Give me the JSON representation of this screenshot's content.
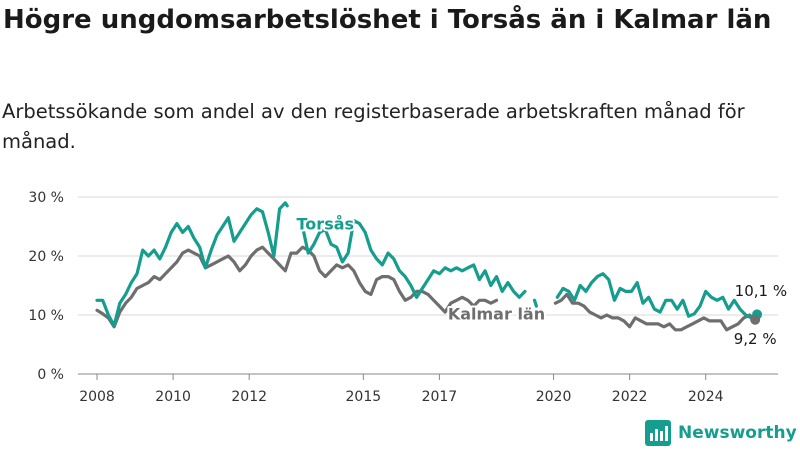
{
  "chart_data": {
    "type": "line",
    "title": "Högre ungdomsarbetslöshet i Torsås än i Kalmar län",
    "subtitle": "Arbetssökande som andel av den registerbaserade arbetskraften månad för månad.",
    "ylim": [
      0,
      30
    ],
    "y_ticks": [
      "0 %",
      "10 %",
      "20 %",
      "30 %"
    ],
    "y_tick_values": [
      0,
      10,
      20,
      30
    ],
    "x_ticks": [
      "2008",
      "2010",
      "2012",
      "2015",
      "2017",
      "2020",
      "2022",
      "2024"
    ],
    "x_tick_values": [
      2008,
      2010,
      2012,
      2015,
      2017,
      2020,
      2022,
      2024
    ],
    "xlim": [
      2007.5,
      2025.9
    ],
    "grid": true,
    "legend": "direct labels on lines",
    "series": [
      {
        "name": "Torsås",
        "color": "#159d8e",
        "points": [
          [
            2008.0,
            12.5
          ],
          [
            2008.15,
            12.5
          ],
          [
            2008.3,
            10.0
          ],
          [
            2008.45,
            8.2
          ],
          [
            2008.6,
            12.0
          ],
          [
            2008.75,
            13.5
          ],
          [
            2008.9,
            15.5
          ],
          [
            2009.05,
            17.0
          ],
          [
            2009.2,
            21.0
          ],
          [
            2009.35,
            20.0
          ],
          [
            2009.5,
            21.0
          ],
          [
            2009.65,
            19.5
          ],
          [
            2009.8,
            21.5
          ],
          [
            2009.95,
            24.0
          ],
          [
            2010.1,
            25.5
          ],
          [
            2010.25,
            24.0
          ],
          [
            2010.4,
            25.0
          ],
          [
            2010.55,
            23.0
          ],
          [
            2010.7,
            21.5
          ],
          [
            2010.85,
            18.0
          ],
          [
            2011.0,
            21.0
          ],
          [
            2011.15,
            23.5
          ],
          [
            2011.3,
            25.0
          ],
          [
            2011.45,
            26.5
          ],
          [
            2011.6,
            22.5
          ],
          [
            2011.75,
            24.0
          ],
          [
            2011.9,
            25.5
          ],
          [
            2012.05,
            27.0
          ],
          [
            2012.2,
            28.0
          ],
          [
            2012.35,
            27.5
          ],
          [
            2012.5,
            24.0
          ],
          [
            2012.65,
            20.0
          ],
          [
            2012.8,
            28.0
          ],
          [
            2012.95,
            29.0
          ],
          [
            2013.0,
            28.5
          ],
          null,
          [
            2013.4,
            25.0
          ],
          [
            2013.55,
            20.5
          ],
          [
            2013.7,
            22.0
          ],
          [
            2013.85,
            24.0
          ],
          [
            2014.0,
            24.5
          ],
          [
            2014.15,
            22.0
          ],
          [
            2014.3,
            21.5
          ],
          [
            2014.45,
            19.0
          ],
          [
            2014.6,
            20.5
          ],
          [
            2014.75,
            26.0
          ],
          [
            2014.9,
            25.5
          ],
          [
            2015.05,
            24.0
          ],
          [
            2015.2,
            21.0
          ],
          [
            2015.35,
            19.5
          ],
          [
            2015.5,
            18.5
          ],
          [
            2015.65,
            20.5
          ],
          [
            2015.8,
            19.5
          ],
          [
            2015.95,
            17.5
          ],
          [
            2016.1,
            16.5
          ],
          [
            2016.25,
            15.0
          ],
          [
            2016.4,
            13.0
          ],
          [
            2016.55,
            14.5
          ],
          [
            2016.7,
            16.0
          ],
          [
            2016.85,
            17.5
          ],
          [
            2017.0,
            17.0
          ],
          [
            2017.15,
            18.0
          ],
          [
            2017.3,
            17.5
          ],
          [
            2017.45,
            18.0
          ],
          [
            2017.6,
            17.5
          ],
          [
            2017.75,
            18.0
          ],
          [
            2017.9,
            18.5
          ],
          [
            2018.05,
            16.0
          ],
          [
            2018.2,
            17.5
          ],
          [
            2018.35,
            15.0
          ],
          [
            2018.5,
            16.5
          ],
          [
            2018.65,
            14.0
          ],
          [
            2018.8,
            15.5
          ],
          [
            2018.95,
            14.0
          ],
          [
            2019.1,
            13.0
          ],
          [
            2019.25,
            14.0
          ],
          null,
          [
            2019.5,
            12.5
          ],
          [
            2019.55,
            11.5
          ],
          null,
          [
            2020.1,
            13.0
          ],
          [
            2020.25,
            14.5
          ],
          [
            2020.4,
            14.0
          ],
          [
            2020.55,
            12.5
          ],
          [
            2020.7,
            15.0
          ],
          [
            2020.85,
            14.0
          ],
          [
            2021.0,
            15.5
          ],
          [
            2021.15,
            16.5
          ],
          [
            2021.3,
            17.0
          ],
          [
            2021.45,
            16.0
          ],
          [
            2021.6,
            12.5
          ],
          [
            2021.75,
            14.5
          ],
          [
            2021.9,
            14.0
          ],
          [
            2022.05,
            14.0
          ],
          [
            2022.2,
            15.5
          ],
          [
            2022.35,
            12.0
          ],
          [
            2022.5,
            13.0
          ],
          [
            2022.65,
            11.0
          ],
          [
            2022.8,
            10.5
          ],
          [
            2022.95,
            12.5
          ],
          [
            2023.1,
            12.5
          ],
          [
            2023.25,
            11.0
          ],
          [
            2023.4,
            12.5
          ],
          [
            2023.55,
            9.8
          ],
          [
            2023.7,
            10.2
          ],
          [
            2023.85,
            11.5
          ],
          [
            2024.0,
            14.0
          ],
          [
            2024.15,
            13.0
          ],
          [
            2024.3,
            12.5
          ],
          [
            2024.45,
            13.0
          ],
          [
            2024.6,
            11.0
          ],
          [
            2024.75,
            12.5
          ],
          [
            2024.9,
            11.0
          ],
          [
            2025.05,
            10.0
          ],
          [
            2025.2,
            9.5
          ],
          [
            2025.35,
            10.1
          ]
        ]
      },
      {
        "name": "Kalmar län",
        "color": "#6e6e6e",
        "points": [
          [
            2008.0,
            10.8
          ],
          [
            2008.15,
            10.2
          ],
          [
            2008.3,
            9.5
          ],
          [
            2008.45,
            8.0
          ],
          [
            2008.6,
            10.5
          ],
          [
            2008.75,
            12.0
          ],
          [
            2008.9,
            13.0
          ],
          [
            2009.05,
            14.5
          ],
          [
            2009.2,
            15.0
          ],
          [
            2009.35,
            15.5
          ],
          [
            2009.5,
            16.5
          ],
          [
            2009.65,
            16.0
          ],
          [
            2009.8,
            17.0
          ],
          [
            2009.95,
            18.0
          ],
          [
            2010.1,
            19.0
          ],
          [
            2010.25,
            20.5
          ],
          [
            2010.4,
            21.0
          ],
          [
            2010.55,
            20.5
          ],
          [
            2010.7,
            20.0
          ],
          [
            2010.85,
            18.0
          ],
          [
            2011.0,
            18.5
          ],
          [
            2011.15,
            19.0
          ],
          [
            2011.3,
            19.5
          ],
          [
            2011.45,
            20.0
          ],
          [
            2011.6,
            19.0
          ],
          [
            2011.75,
            17.5
          ],
          [
            2011.9,
            18.5
          ],
          [
            2012.05,
            20.0
          ],
          [
            2012.2,
            21.0
          ],
          [
            2012.35,
            21.5
          ],
          [
            2012.5,
            20.5
          ],
          [
            2012.65,
            19.5
          ],
          [
            2012.8,
            18.5
          ],
          [
            2012.95,
            17.5
          ],
          [
            2013.1,
            20.5
          ],
          [
            2013.25,
            20.5
          ],
          [
            2013.4,
            21.5
          ],
          [
            2013.55,
            21.0
          ],
          [
            2013.7,
            20.0
          ],
          [
            2013.85,
            17.5
          ],
          [
            2014.0,
            16.5
          ],
          [
            2014.15,
            17.5
          ],
          [
            2014.3,
            18.5
          ],
          [
            2014.45,
            18.0
          ],
          [
            2014.6,
            18.5
          ],
          [
            2014.75,
            17.5
          ],
          [
            2014.9,
            15.5
          ],
          [
            2015.05,
            14.0
          ],
          [
            2015.2,
            13.5
          ],
          [
            2015.35,
            16.0
          ],
          [
            2015.5,
            16.5
          ],
          [
            2015.65,
            16.5
          ],
          [
            2015.8,
            16.0
          ],
          [
            2015.95,
            14.0
          ],
          [
            2016.1,
            12.5
          ],
          [
            2016.25,
            13.0
          ],
          [
            2016.4,
            14.0
          ],
          [
            2016.55,
            14.0
          ],
          [
            2016.7,
            13.5
          ],
          [
            2016.85,
            12.5
          ],
          [
            2017.0,
            11.5
          ],
          [
            2017.15,
            10.5
          ],
          [
            2017.3,
            12.0
          ],
          [
            2017.45,
            12.5
          ],
          [
            2017.6,
            13.0
          ],
          [
            2017.75,
            12.5
          ],
          [
            2017.9,
            11.5
          ],
          [
            2018.05,
            12.5
          ],
          [
            2018.2,
            12.5
          ],
          [
            2018.35,
            12.0
          ],
          [
            2018.5,
            12.5
          ],
          null,
          [
            2020.05,
            12.0
          ],
          [
            2020.2,
            12.5
          ],
          [
            2020.35,
            13.5
          ],
          [
            2020.5,
            12.0
          ],
          [
            2020.65,
            12.0
          ],
          [
            2020.8,
            11.5
          ],
          [
            2020.95,
            10.5
          ],
          [
            2021.1,
            10.0
          ],
          [
            2021.25,
            9.5
          ],
          [
            2021.4,
            10.0
          ],
          [
            2021.55,
            9.5
          ],
          [
            2021.7,
            9.5
          ],
          [
            2021.85,
            9.0
          ],
          [
            2022.0,
            8.0
          ],
          [
            2022.15,
            9.5
          ],
          [
            2022.3,
            9.0
          ],
          [
            2022.45,
            8.5
          ],
          [
            2022.6,
            8.5
          ],
          [
            2022.75,
            8.5
          ],
          [
            2022.9,
            8.0
          ],
          [
            2023.05,
            8.5
          ],
          [
            2023.2,
            7.5
          ],
          [
            2023.35,
            7.5
          ],
          [
            2023.5,
            8.0
          ],
          [
            2023.65,
            8.5
          ],
          [
            2023.8,
            9.0
          ],
          [
            2023.95,
            9.5
          ],
          [
            2024.1,
            9.0
          ],
          [
            2024.25,
            9.0
          ],
          [
            2024.4,
            9.0
          ],
          [
            2024.55,
            7.5
          ],
          [
            2024.7,
            8.0
          ],
          [
            2024.85,
            8.5
          ],
          [
            2025.0,
            9.5
          ],
          [
            2025.15,
            10.0
          ],
          [
            2025.3,
            9.2
          ]
        ]
      }
    ],
    "annotations": [
      {
        "text": "Torsås",
        "series": "Torsås"
      },
      {
        "text": "Kalmar län",
        "series": "Kalmar län"
      },
      {
        "text": "10,1 %",
        "series": "Torsås"
      },
      {
        "text": "9,2 %",
        "series": "Kalmar län"
      }
    ]
  },
  "brand": {
    "name": "Newsworthy",
    "logo_icon": "bar-chart-icon",
    "color": "#159d8e"
  }
}
